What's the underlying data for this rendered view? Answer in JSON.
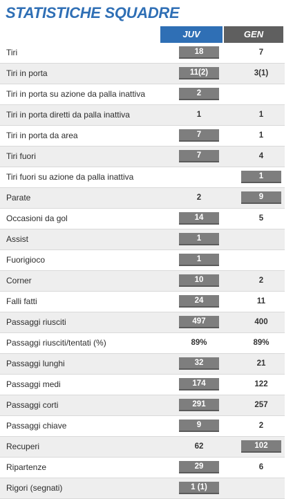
{
  "title": "STATISTICHE SQUADRE",
  "teams": {
    "home": "JUV",
    "away": "GEN"
  },
  "colors": {
    "accent": "#2f6fb5",
    "away_header": "#5f5f5f",
    "highlight": "#7e7e7e",
    "row_shade": "#eeeeee"
  },
  "stats": [
    {
      "label": "Tiri",
      "home": "18",
      "away": "7",
      "hi": "home"
    },
    {
      "label": "Tiri in porta",
      "home": "11(2)",
      "away": "3(1)",
      "hi": "home"
    },
    {
      "label": "Tiri in porta su azione da palla inattiva",
      "home": "2",
      "away": "",
      "hi": "home"
    },
    {
      "label": "Tiri in porta diretti da palla inattiva",
      "home": "1",
      "away": "1",
      "hi": ""
    },
    {
      "label": "Tiri in porta da area",
      "home": "7",
      "away": "1",
      "hi": "home"
    },
    {
      "label": "Tiri fuori",
      "home": "7",
      "away": "4",
      "hi": "home"
    },
    {
      "label": "Tiri fuori su azione da palla inattiva",
      "home": "",
      "away": "1",
      "hi": "away"
    },
    {
      "label": "Parate",
      "home": "2",
      "away": "9",
      "hi": "away"
    },
    {
      "label": "Occasioni da gol",
      "home": "14",
      "away": "5",
      "hi": "home"
    },
    {
      "label": "Assist",
      "home": "1",
      "away": "",
      "hi": "home"
    },
    {
      "label": "Fuorigioco",
      "home": "1",
      "away": "",
      "hi": "home"
    },
    {
      "label": "Corner",
      "home": "10",
      "away": "2",
      "hi": "home"
    },
    {
      "label": "Falli fatti",
      "home": "24",
      "away": "11",
      "hi": "home"
    },
    {
      "label": "Passaggi riusciti",
      "home": "497",
      "away": "400",
      "hi": "home"
    },
    {
      "label": "Passaggi riusciti/tentati (%)",
      "home": "89%",
      "away": "89%",
      "hi": ""
    },
    {
      "label": "Passaggi lunghi",
      "home": "32",
      "away": "21",
      "hi": "home"
    },
    {
      "label": "Passaggi medi",
      "home": "174",
      "away": "122",
      "hi": "home"
    },
    {
      "label": "Passaggi corti",
      "home": "291",
      "away": "257",
      "hi": "home"
    },
    {
      "label": "Passaggi chiave",
      "home": "9",
      "away": "2",
      "hi": "home"
    },
    {
      "label": "Recuperi",
      "home": "62",
      "away": "102",
      "hi": "away"
    },
    {
      "label": "Ripartenze",
      "home": "29",
      "away": "6",
      "hi": "home"
    },
    {
      "label": "Rigori (segnati)",
      "home": "1 (1)",
      "away": "",
      "hi": "home"
    }
  ]
}
